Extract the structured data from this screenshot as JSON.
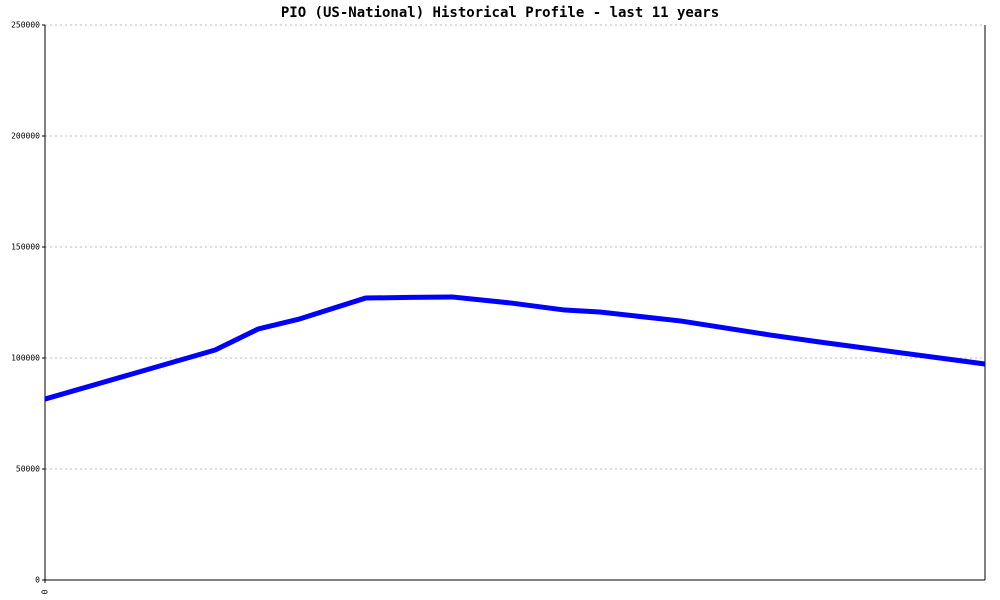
{
  "chart_data": {
    "type": "line",
    "title": "PIO (US-National) Historical Profile - last 11 years",
    "x": [
      0,
      18.1,
      22.7,
      27.1,
      34.1,
      38.8,
      43.3,
      49.5,
      55.3,
      59.0,
      67.6,
      77.1,
      82.4,
      100
    ],
    "series": [
      {
        "color": "#0000ff",
        "values": [
          81500,
          103600,
          113100,
          117600,
          127000,
          127300,
          127500,
          124800,
          121600,
          120700,
          116700,
          110400,
          107200,
          97300
        ]
      }
    ],
    "xlim": [
      0,
      100
    ],
    "xticks": [
      0
    ],
    "ylim": [
      0,
      250000
    ],
    "yticks": [
      0,
      50000,
      100000,
      150000,
      200000,
      250000
    ],
    "grid": true
  }
}
